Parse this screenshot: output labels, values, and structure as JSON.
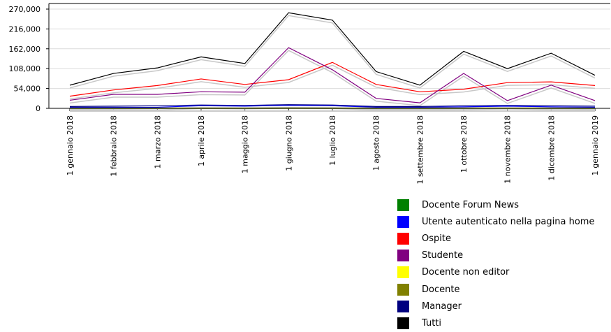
{
  "chart_data": {
    "type": "line",
    "categories": [
      "1 gennaio 2018",
      "1 febbraio 2018",
      "1 marzo 2018",
      "1 aprile 2018",
      "1 maggio 2018",
      "1 giugno 2018",
      "1 luglio 2018",
      "1 agosto 2018",
      "1 settembre 2018",
      "1 ottobre 2018",
      "1 novembre 2018",
      "1 dicembre 2018",
      "1 gennaio 2019"
    ],
    "yticks": [
      "0",
      "54,000",
      "108,000",
      "162,000",
      "216,000",
      "270,000"
    ],
    "ylim": [
      0,
      270000
    ],
    "series": [
      {
        "name": "Docente Forum News",
        "color": "#008000",
        "values": [
          0,
          0,
          0,
          0,
          0,
          0,
          0,
          0,
          0,
          0,
          0,
          0,
          0
        ]
      },
      {
        "name": "Utente autenticato nella pagina home",
        "color": "#0000ff",
        "values": [
          3000,
          3000,
          3000,
          7000,
          6000,
          8000,
          7000,
          3000,
          3000,
          4000,
          6000,
          4000,
          3000
        ]
      },
      {
        "name": "Ospite",
        "color": "#ff0000",
        "values": [
          33000,
          50000,
          62000,
          80000,
          65000,
          78000,
          125000,
          65000,
          45000,
          52000,
          70000,
          72000,
          62000
        ]
      },
      {
        "name": "Studente",
        "color": "#800080",
        "values": [
          22000,
          38000,
          38000,
          45000,
          44000,
          165000,
          105000,
          27000,
          15000,
          95000,
          21000,
          63000,
          21000
        ]
      },
      {
        "name": "Docente non editor",
        "color": "#ffff00",
        "values": [
          0,
          0,
          0,
          0,
          0,
          0,
          0,
          0,
          0,
          0,
          0,
          0,
          0
        ]
      },
      {
        "name": "Docente",
        "color": "#808000",
        "values": [
          1000,
          1000,
          1000,
          1000,
          1000,
          1000,
          1000,
          1000,
          1000,
          1000,
          1000,
          1000,
          1000
        ]
      },
      {
        "name": "Manager",
        "color": "#000080",
        "values": [
          5000,
          6000,
          7000,
          9000,
          8000,
          10000,
          9000,
          5000,
          5000,
          7000,
          8000,
          7000,
          6000
        ]
      },
      {
        "name": "Tutti",
        "color": "#000000",
        "values": [
          63000,
          95000,
          110000,
          140000,
          122000,
          260000,
          240000,
          100000,
          63000,
          155000,
          108000,
          150000,
          90000
        ]
      }
    ],
    "legend_position": "bottom-right",
    "grid": "horizontal"
  }
}
